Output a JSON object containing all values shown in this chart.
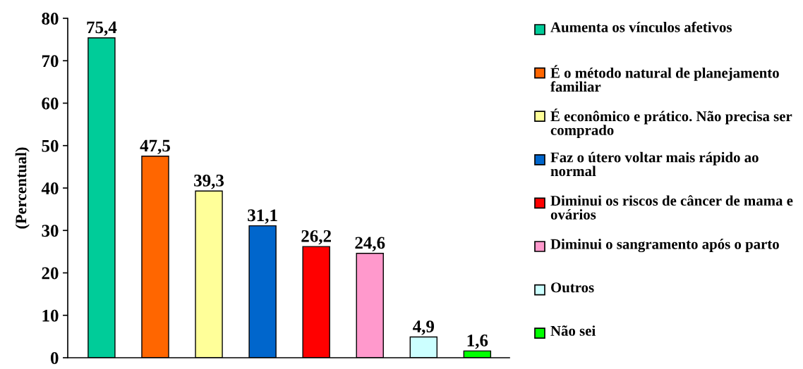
{
  "chart_data": {
    "type": "bar",
    "categories": [
      null,
      null,
      null,
      null,
      null,
      null,
      null,
      null
    ],
    "series": [
      {
        "name": "Aumenta os vínculos afetivos",
        "color": "#00cc99",
        "values": [
          75.4,
          null,
          null,
          null,
          null,
          null,
          null,
          null
        ],
        "value_labels": [
          "75,4",
          null,
          null,
          null,
          null,
          null,
          null,
          null
        ]
      },
      {
        "name": "É o método natural de planejamento familiar",
        "color": "#ff6600",
        "values": [
          null,
          47.5,
          null,
          null,
          null,
          null,
          null,
          null
        ],
        "value_labels": [
          null,
          "47,5",
          null,
          null,
          null,
          null,
          null,
          null
        ]
      },
      {
        "name": "É econômico e prático. Não precisa ser comprado",
        "color": "#ffff99",
        "values": [
          null,
          null,
          39.3,
          null,
          null,
          null,
          null,
          null
        ],
        "value_labels": [
          null,
          null,
          "39,3",
          null,
          null,
          null,
          null,
          null
        ]
      },
      {
        "name": "Faz o útero voltar mais rápido ao normal",
        "color": "#0066cc",
        "values": [
          null,
          null,
          null,
          31.1,
          null,
          null,
          null,
          null
        ],
        "value_labels": [
          null,
          null,
          null,
          "31,1",
          null,
          null,
          null,
          null
        ]
      },
      {
        "name": "Diminui os riscos de câncer de mama e ovários",
        "color": "#ff0000",
        "values": [
          null,
          null,
          null,
          null,
          26.2,
          null,
          null,
          null
        ],
        "value_labels": [
          null,
          null,
          null,
          null,
          "26,2",
          null,
          null,
          null
        ]
      },
      {
        "name": "Diminui o sangramento após o parto",
        "color": "#ff99cc",
        "values": [
          null,
          null,
          null,
          null,
          null,
          24.6,
          null,
          null
        ],
        "value_labels": [
          null,
          null,
          null,
          null,
          null,
          "24,6",
          null,
          null
        ]
      },
      {
        "name": "Outros",
        "color": "#ccffff",
        "values": [
          null,
          null,
          null,
          null,
          null,
          null,
          4.9,
          null
        ],
        "value_labels": [
          null,
          null,
          null,
          null,
          null,
          null,
          "4,9",
          null
        ]
      },
      {
        "name": "Não sei",
        "color": "#00ff00",
        "values": [
          null,
          null,
          null,
          null,
          null,
          null,
          null,
          1.6
        ],
        "value_labels": [
          null,
          null,
          null,
          null,
          null,
          null,
          null,
          "1,6"
        ]
      }
    ],
    "ylabel": "(Percentual)",
    "ylim": [
      0,
      80
    ],
    "yticks": [
      0,
      10,
      20,
      30,
      40,
      50,
      60,
      70,
      80
    ],
    "legend": "right"
  }
}
